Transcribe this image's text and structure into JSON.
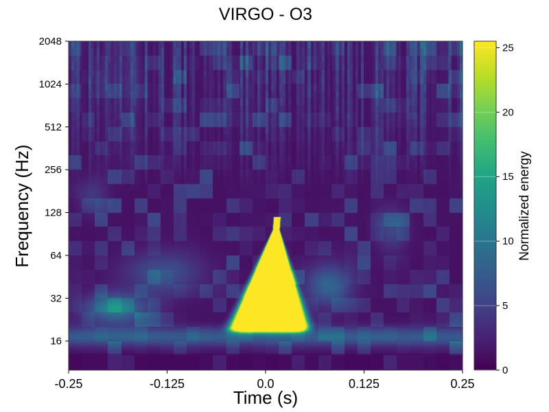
{
  "chart_data": {
    "type": "heatmap",
    "title": "VIRGO - O3",
    "xlabel": "Time (s)",
    "ylabel": "Frequency (Hz)",
    "xlim": [
      -0.25,
      0.25
    ],
    "ylim": [
      10,
      2048
    ],
    "y_scale": "log2",
    "x_ticks": [
      {
        "value": -0.25,
        "label": "-0.25"
      },
      {
        "value": -0.125,
        "label": "-0.125"
      },
      {
        "value": 0.0,
        "label": "0.0"
      },
      {
        "value": 0.125,
        "label": "0.125"
      },
      {
        "value": 0.25,
        "label": "0.25"
      }
    ],
    "y_ticks": [
      {
        "value": 16,
        "label": "16"
      },
      {
        "value": 32,
        "label": "32"
      },
      {
        "value": 64,
        "label": "64"
      },
      {
        "value": 128,
        "label": "128"
      },
      {
        "value": 256,
        "label": "256"
      },
      {
        "value": 512,
        "label": "512"
      },
      {
        "value": 1024,
        "label": "1024"
      },
      {
        "value": 2048,
        "label": "2048"
      }
    ],
    "colorbar": {
      "label": "Normalized energy",
      "range": [
        0,
        25.5
      ],
      "colormap": "viridis",
      "ticks": [
        {
          "value": 0,
          "label": "0"
        },
        {
          "value": 5,
          "label": "5"
        },
        {
          "value": 10,
          "label": "10"
        },
        {
          "value": 15,
          "label": "15"
        },
        {
          "value": 20,
          "label": "20"
        },
        {
          "value": 25,
          "label": "25"
        }
      ]
    },
    "features": [
      {
        "name": "main transient",
        "t_center": 0.0,
        "t_min": -0.035,
        "t_max": 0.045,
        "f_min": 18,
        "f_max": 115,
        "peak_energy": 25.5
      },
      {
        "name": "low-frequency band",
        "t_min": -0.25,
        "t_max": 0.25,
        "f_center": 17,
        "energy": 6
      },
      {
        "name": "side lobe",
        "t_center": -0.19,
        "f_center": 26,
        "energy": 9
      },
      {
        "name": "side lobe",
        "t_center": 0.08,
        "f_center": 40,
        "energy": 7
      }
    ],
    "grid": false
  }
}
